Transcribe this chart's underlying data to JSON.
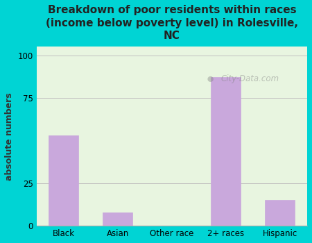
{
  "categories": [
    "Black",
    "Asian",
    "Other race",
    "2+ races",
    "Hispanic"
  ],
  "values": [
    53,
    8,
    0,
    87,
    15
  ],
  "bar_color": "#c9a8dc",
  "title": "Breakdown of poor residents within races\n(income below poverty level) in Rolesville,\nNC",
  "ylabel": "absolute numbers",
  "yticks": [
    0,
    25,
    75,
    100
  ],
  "ylim": [
    0,
    105
  ],
  "bg_outer": "#00d4d4",
  "bg_plot": "#e8f5e0",
  "title_fontsize": 11,
  "axis_label_fontsize": 9,
  "tick_fontsize": 8.5,
  "watermark": "City-Data.com"
}
